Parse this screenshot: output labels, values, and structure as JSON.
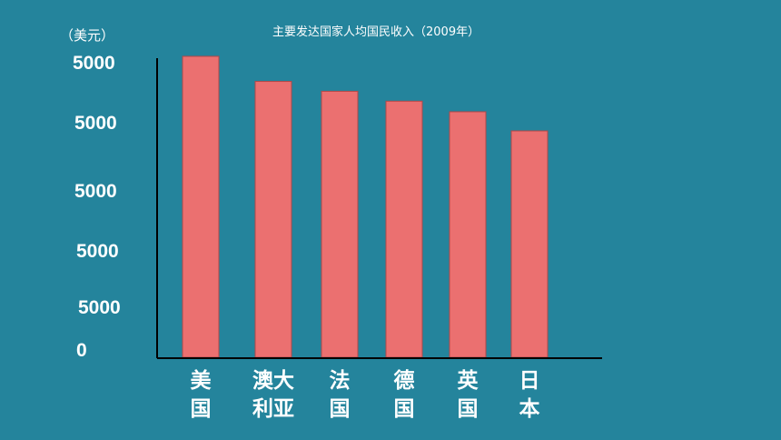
{
  "chart_data": {
    "type": "bar",
    "title": "主要发达国家人均国民收入（2009年）",
    "ylabel": "（美元）",
    "y_tick_labels": [
      "5000",
      "5000",
      "5000",
      "5000",
      "5000",
      "0"
    ],
    "categories": [
      [
        "美",
        "国"
      ],
      [
        "澳大",
        "利亚"
      ],
      [
        "法",
        "国"
      ],
      [
        "德",
        "国"
      ],
      [
        "英",
        "国"
      ],
      [
        "日",
        "本"
      ]
    ],
    "values": [
      45600,
      41800,
      40300,
      38800,
      37200,
      34300
    ],
    "ylim": [
      0,
      50000
    ],
    "bar_color": "#eb7070",
    "background": "#24849c",
    "grid": false,
    "legend": "none"
  }
}
